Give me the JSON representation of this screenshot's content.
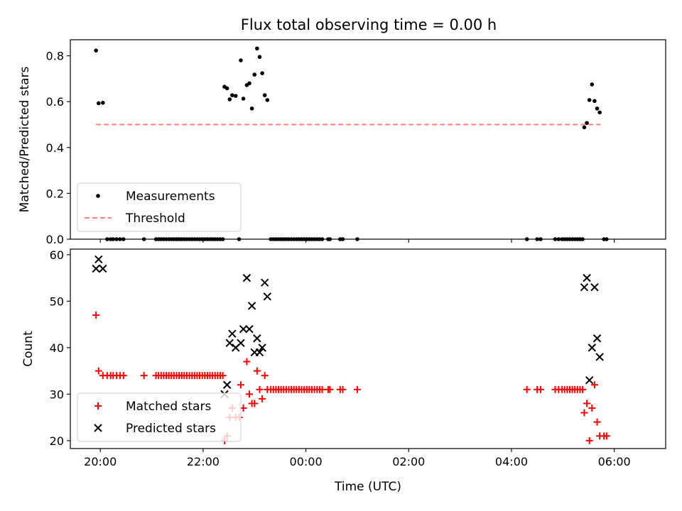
{
  "title": "Flux total observing time = 0.00 h",
  "colors": {
    "measurement": "#000000",
    "threshold": "#ff7f7f",
    "matched": "#ff0000",
    "predicted": "#000000"
  },
  "chart_data": [
    {
      "type": "scatter",
      "title": "Flux total observing time = 0.00 h",
      "xlabel": "",
      "ylabel": "Matched/Predicted stars",
      "xlim": [
        "19:25",
        "07:00"
      ],
      "ylim": [
        0,
        0.87
      ],
      "yticks": [
        "0.0",
        "0.2",
        "0.4",
        "0.6",
        "0.8"
      ],
      "ytick_values": [
        0,
        0.2,
        0.4,
        0.6,
        0.8
      ],
      "xtick_values": [
        1200,
        1320,
        1440,
        1560,
        1680,
        1800
      ],
      "grid": false,
      "legend_position": "lower-left",
      "series": [
        {
          "name": "Measurements",
          "marker": "dot",
          "points": [
            [
              1195,
              0.823
            ],
            [
              1198,
              0.593
            ],
            [
              1203,
              0.595
            ],
            [
              1208,
              0
            ],
            [
              1212,
              0
            ],
            [
              1215,
              0
            ],
            [
              1219,
              0
            ],
            [
              1223,
              0
            ],
            [
              1227,
              0
            ],
            [
              1251,
              0
            ],
            [
              1265,
              0
            ],
            [
              1268,
              0
            ],
            [
              1271,
              0
            ],
            [
              1274,
              0
            ],
            [
              1277,
              0
            ],
            [
              1280,
              0
            ],
            [
              1283,
              0
            ],
            [
              1286,
              0
            ],
            [
              1289,
              0
            ],
            [
              1292,
              0
            ],
            [
              1295,
              0
            ],
            [
              1298,
              0
            ],
            [
              1301,
              0
            ],
            [
              1304,
              0
            ],
            [
              1307,
              0
            ],
            [
              1310,
              0
            ],
            [
              1313,
              0
            ],
            [
              1316,
              0
            ],
            [
              1319,
              0
            ],
            [
              1322,
              0
            ],
            [
              1325,
              0
            ],
            [
              1328,
              0
            ],
            [
              1331,
              0
            ],
            [
              1334,
              0
            ],
            [
              1337,
              0
            ],
            [
              1340,
              0
            ],
            [
              1343,
              0
            ],
            [
              1345,
              0.665
            ],
            [
              1348,
              0.658
            ],
            [
              1351,
              0.61
            ],
            [
              1354,
              0.628
            ],
            [
              1358,
              0.625
            ],
            [
              1362,
              0
            ],
            [
              1364,
              0.78
            ],
            [
              1367,
              0.613
            ],
            [
              1371,
              0.672
            ],
            [
              1374,
              0.68
            ],
            [
              1377,
              0.57
            ],
            [
              1380,
              0.718
            ],
            [
              1383,
              0.832
            ],
            [
              1386,
              0.795
            ],
            [
              1389,
              0.724
            ],
            [
              1392,
              0.628
            ],
            [
              1395,
              0.607
            ],
            [
              1399,
              0
            ],
            [
              1402,
              0
            ],
            [
              1405,
              0
            ],
            [
              1408,
              0
            ],
            [
              1411,
              0
            ],
            [
              1414,
              0
            ],
            [
              1417,
              0
            ],
            [
              1420,
              0
            ],
            [
              1423,
              0
            ],
            [
              1426,
              0
            ],
            [
              1429,
              0
            ],
            [
              1432,
              0
            ],
            [
              1435,
              0
            ],
            [
              1438,
              0
            ],
            [
              1441,
              0
            ],
            [
              1444,
              0
            ],
            [
              1447,
              0
            ],
            [
              1450,
              0
            ],
            [
              1453,
              0
            ],
            [
              1456,
              0
            ],
            [
              1459,
              0
            ],
            [
              1466,
              0
            ],
            [
              1468,
              0
            ],
            [
              1480,
              0
            ],
            [
              1483,
              0
            ],
            [
              1500,
              0
            ],
            [
              1698,
              0
            ],
            [
              1710,
              0
            ],
            [
              1714,
              0
            ],
            [
              1731,
              0
            ],
            [
              1735,
              0
            ],
            [
              1739,
              0
            ],
            [
              1742,
              0
            ],
            [
              1745,
              0
            ],
            [
              1748,
              0
            ],
            [
              1751,
              0
            ],
            [
              1754,
              0
            ],
            [
              1757,
              0
            ],
            [
              1760,
              0
            ],
            [
              1763,
              0
            ],
            [
              1765,
              0.488
            ],
            [
              1768,
              0.507
            ],
            [
              1771,
              0.607
            ],
            [
              1774,
              0.675
            ],
            [
              1777,
              0.603
            ],
            [
              1780,
              0.57
            ],
            [
              1783,
              0.553
            ],
            [
              1788,
              0
            ],
            [
              1791,
              0
            ]
          ]
        },
        {
          "name": "Threshold",
          "marker": "dashed-line",
          "points": [
            [
              1195,
              0.5
            ],
            [
              1784,
              0.5
            ]
          ]
        }
      ]
    },
    {
      "type": "scatter",
      "xlabel": "Time (UTC)",
      "ylabel": "Count",
      "xlim": [
        "19:25",
        "07:00"
      ],
      "ylim": [
        18.3,
        61.2
      ],
      "xticks": [
        "20:00",
        "22:00",
        "00:00",
        "02:00",
        "04:00",
        "06:00"
      ],
      "xtick_values": [
        1200,
        1320,
        1440,
        1560,
        1680,
        1800
      ],
      "yticks": [
        "20",
        "30",
        "40",
        "50",
        "60"
      ],
      "ytick_values": [
        20,
        30,
        40,
        50,
        60
      ],
      "grid": false,
      "legend_position": "lower-left",
      "series": [
        {
          "name": "Matched stars",
          "marker": "plus",
          "points": [
            [
              1195,
              47
            ],
            [
              1198,
              35
            ],
            [
              1203,
              34
            ],
            [
              1208,
              34
            ],
            [
              1212,
              34
            ],
            [
              1215,
              34
            ],
            [
              1219,
              34
            ],
            [
              1223,
              34
            ],
            [
              1227,
              34
            ],
            [
              1251,
              34
            ],
            [
              1265,
              34
            ],
            [
              1268,
              34
            ],
            [
              1271,
              34
            ],
            [
              1274,
              34
            ],
            [
              1277,
              34
            ],
            [
              1280,
              34
            ],
            [
              1283,
              34
            ],
            [
              1286,
              34
            ],
            [
              1289,
              34
            ],
            [
              1292,
              34
            ],
            [
              1295,
              34
            ],
            [
              1298,
              34
            ],
            [
              1301,
              34
            ],
            [
              1304,
              34
            ],
            [
              1307,
              34
            ],
            [
              1310,
              34
            ],
            [
              1313,
              34
            ],
            [
              1316,
              34
            ],
            [
              1319,
              34
            ],
            [
              1322,
              34
            ],
            [
              1325,
              34
            ],
            [
              1328,
              34
            ],
            [
              1331,
              34
            ],
            [
              1334,
              34
            ],
            [
              1337,
              34
            ],
            [
              1340,
              34
            ],
            [
              1343,
              34
            ],
            [
              1345,
              20
            ],
            [
              1348,
              21
            ],
            [
              1351,
              25
            ],
            [
              1354,
              27
            ],
            [
              1358,
              25
            ],
            [
              1362,
              25
            ],
            [
              1364,
              32
            ],
            [
              1367,
              27
            ],
            [
              1371,
              37
            ],
            [
              1374,
              30
            ],
            [
              1377,
              28
            ],
            [
              1380,
              28
            ],
            [
              1383,
              35
            ],
            [
              1386,
              31
            ],
            [
              1389,
              29
            ],
            [
              1392,
              34
            ],
            [
              1395,
              31
            ],
            [
              1399,
              31
            ],
            [
              1402,
              31
            ],
            [
              1405,
              31
            ],
            [
              1408,
              31
            ],
            [
              1411,
              31
            ],
            [
              1414,
              31
            ],
            [
              1417,
              31
            ],
            [
              1420,
              31
            ],
            [
              1423,
              31
            ],
            [
              1426,
              31
            ],
            [
              1429,
              31
            ],
            [
              1432,
              31
            ],
            [
              1435,
              31
            ],
            [
              1438,
              31
            ],
            [
              1441,
              31
            ],
            [
              1444,
              31
            ],
            [
              1447,
              31
            ],
            [
              1450,
              31
            ],
            [
              1453,
              31
            ],
            [
              1456,
              31
            ],
            [
              1459,
              31
            ],
            [
              1466,
              31
            ],
            [
              1468,
              31
            ],
            [
              1480,
              31
            ],
            [
              1483,
              31
            ],
            [
              1500,
              31
            ],
            [
              1698,
              31
            ],
            [
              1710,
              31
            ],
            [
              1714,
              31
            ],
            [
              1731,
              31
            ],
            [
              1735,
              31
            ],
            [
              1739,
              31
            ],
            [
              1742,
              31
            ],
            [
              1745,
              31
            ],
            [
              1748,
              31
            ],
            [
              1751,
              31
            ],
            [
              1754,
              31
            ],
            [
              1757,
              31
            ],
            [
              1760,
              31
            ],
            [
              1763,
              31
            ],
            [
              1765,
              26
            ],
            [
              1768,
              28
            ],
            [
              1771,
              20
            ],
            [
              1774,
              27
            ],
            [
              1777,
              32
            ],
            [
              1780,
              24
            ],
            [
              1783,
              21
            ],
            [
              1788,
              21
            ],
            [
              1791,
              21
            ]
          ]
        },
        {
          "name": "Predicted stars",
          "marker": "x",
          "points": [
            [
              1195,
              57
            ],
            [
              1198,
              59
            ],
            [
              1203,
              57
            ],
            [
              1345,
              30
            ],
            [
              1348,
              32
            ],
            [
              1351,
              41
            ],
            [
              1354,
              43
            ],
            [
              1358,
              40
            ],
            [
              1364,
              41
            ],
            [
              1367,
              44
            ],
            [
              1371,
              55
            ],
            [
              1374,
              44
            ],
            [
              1377,
              49
            ],
            [
              1380,
              39
            ],
            [
              1383,
              42
            ],
            [
              1386,
              39
            ],
            [
              1389,
              40
            ],
            [
              1392,
              54
            ],
            [
              1395,
              51
            ],
            [
              1765,
              53
            ],
            [
              1768,
              55
            ],
            [
              1771,
              33
            ],
            [
              1774,
              40
            ],
            [
              1777,
              53
            ],
            [
              1780,
              42
            ],
            [
              1783,
              38
            ]
          ]
        }
      ]
    }
  ]
}
